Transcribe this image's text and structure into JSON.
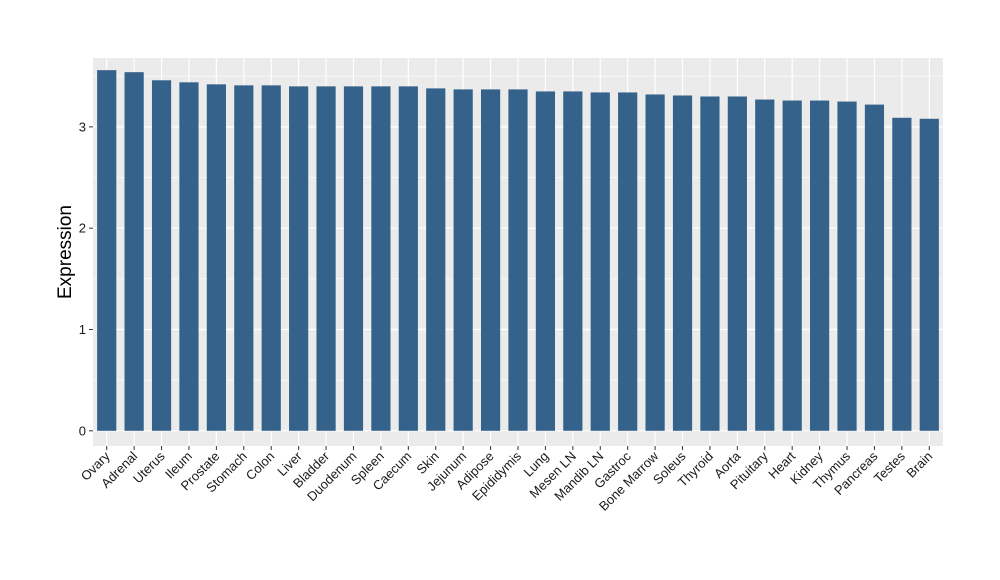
{
  "chart_data": {
    "type": "bar",
    "title": "",
    "xlabel": "",
    "ylabel": "Expression",
    "ylim": [
      -0.15,
      3.68
    ],
    "yticks": [
      0,
      1,
      2,
      3
    ],
    "grid": true,
    "legend": "none",
    "bar_color": "#35628a",
    "panel_color": "#ebebeb",
    "categories": [
      "Ovary",
      "Adrenal",
      "Uterus",
      "Ileum",
      "Prostate",
      "Stomach",
      "Colon",
      "Liver",
      "Bladder",
      "Duodenum",
      "Spleen",
      "Caecum",
      "Skin",
      "Jejunum",
      "Adipose",
      "Epididymis",
      "Lung",
      "Mesen LN",
      "Mandib LN",
      "Gastroc",
      "Bone Marrow",
      "Soleus",
      "Thyroid",
      "Aorta",
      "Pituitary",
      "Heart",
      "Kidney",
      "Thymus",
      "Pancreas",
      "Testes",
      "Brain"
    ],
    "values": [
      3.56,
      3.54,
      3.46,
      3.44,
      3.42,
      3.41,
      3.41,
      3.4,
      3.4,
      3.4,
      3.4,
      3.4,
      3.38,
      3.37,
      3.37,
      3.37,
      3.35,
      3.35,
      3.34,
      3.34,
      3.32,
      3.31,
      3.3,
      3.3,
      3.27,
      3.26,
      3.26,
      3.25,
      3.22,
      3.09,
      3.08
    ]
  }
}
